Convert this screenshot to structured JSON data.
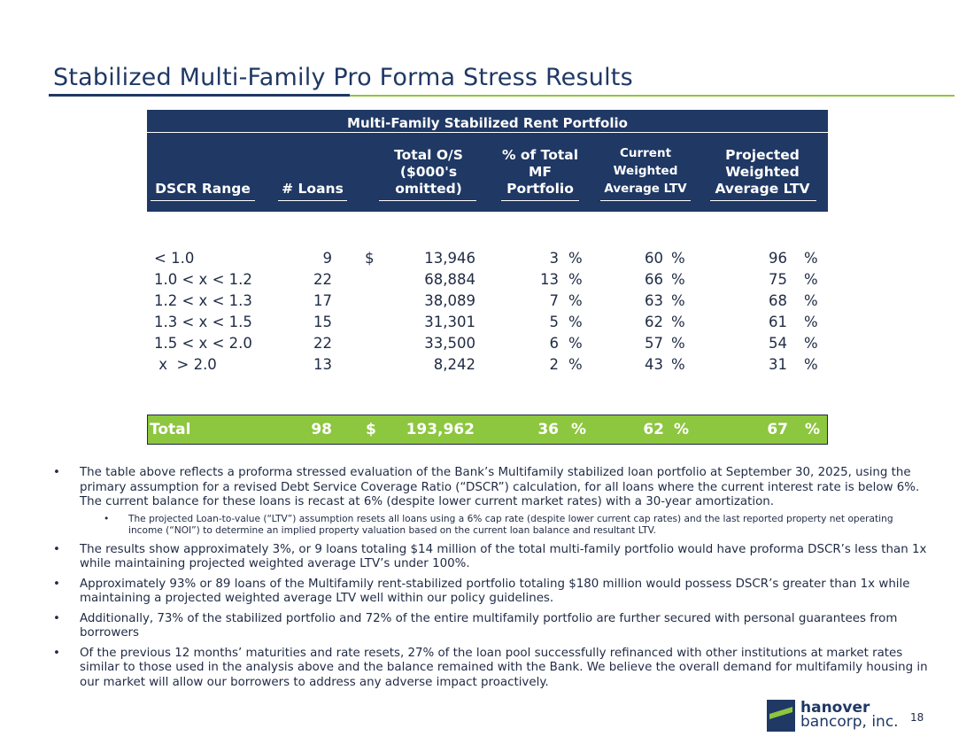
{
  "title": "Stabilized Multi-Family Pro Forma Stress Results",
  "table": {
    "caption": "Multi-Family Stabilized Rent Portfolio",
    "headers": {
      "dscr": [
        "DSCR Range"
      ],
      "loans": [
        "# Loans"
      ],
      "total": [
        "Total O/S",
        "($000's",
        "omitted)"
      ],
      "pct": [
        "% of Total",
        "MF",
        "Portfolio"
      ],
      "cur": [
        "Current",
        "Weighted",
        "Average LTV"
      ],
      "proj": [
        "Projected",
        "Weighted",
        "Average LTV"
      ]
    },
    "rows": [
      {
        "range": "< 1.0",
        "loans": "9",
        "dollar": "$",
        "total": "13,946",
        "pct": "3",
        "cur": "60",
        "proj": "96"
      },
      {
        "range": "1.0 < x  < 1.2",
        "loans": "22",
        "dollar": "",
        "total": "68,884",
        "pct": "13",
        "cur": "66",
        "proj": "75"
      },
      {
        "range": "1.2 < x  < 1.3",
        "loans": "17",
        "dollar": "",
        "total": "38,089",
        "pct": "7",
        "cur": "63",
        "proj": "68"
      },
      {
        "range": "1.3 < x  < 1.5",
        "loans": "15",
        "dollar": "",
        "total": "31,301",
        "pct": "5",
        "cur": "62",
        "proj": "61"
      },
      {
        "range": "1.5 < x  < 2.0",
        "loans": "22",
        "dollar": "",
        "total": "33,500",
        "pct": "6",
        "cur": "57",
        "proj": "54"
      },
      {
        "range": " x  > 2.0",
        "loans": "13",
        "dollar": "",
        "total": "8,242",
        "pct": "2",
        "cur": "43",
        "proj": "31"
      }
    ],
    "percent_sign": "%",
    "total": {
      "label": "Total",
      "loans": "98",
      "dollar": "$",
      "total": "193,962",
      "pct": "36",
      "cur": "62",
      "proj": "67"
    }
  },
  "bullets": [
    {
      "text": "The table above reflects a proforma stressed evaluation of the Bank’s Multifamily stabilized loan portfolio at September 30, 2025, using the primary assumption for a revised Debt Service Coverage Ratio (“DSCR”) calculation, for all loans where the current interest rate is below 6%.  The current balance for these loans is recast at 6% (despite lower current market rates) with a 30-year amortization.",
      "sub": "The projected Loan-to-value (“LTV”) assumption resets all loans using a 6% cap rate (despite lower current cap rates) and the last reported property net operating income (“NOI”) to determine an implied property valuation based on the current loan balance and resultant LTV."
    },
    {
      "text": "The results show approximately 3%, or 9 loans totaling $14 million of the total multi-family portfolio would have proforma DSCR’s less than 1x while maintaining projected weighted average LTV’s under 100%.",
      "sub": ""
    },
    {
      "text": "Approximately 93% or 89 loans of the Multifamily rent-stabilized portfolio totaling $180 million would possess DSCR’s greater than 1x while maintaining a projected weighted average LTV well within our policy guidelines.",
      "sub": ""
    },
    {
      "text": "Additionally, 73% of the stabilized portfolio and 72% of the entire multifamily portfolio are further secured with personal guarantees from borrowers",
      "sub": ""
    },
    {
      "text": "Of the previous 12 months’ maturities and rate resets, 27% of the loan pool successfully refinanced with other institutions at market rates similar to those used in the analysis above and the balance remained with the Bank. We believe the overall demand for multifamily housing in our market will allow our borrowers to address any adverse impact proactively.",
      "sub": ""
    }
  ],
  "bullet_glyph": "•",
  "logo": {
    "line1": "hanover",
    "line2": "bancorp, inc.",
    "icon": "hanover-logo-icon"
  },
  "page_number": "18",
  "colors": {
    "navy": "#1f3864",
    "green": "#8dc63f"
  }
}
